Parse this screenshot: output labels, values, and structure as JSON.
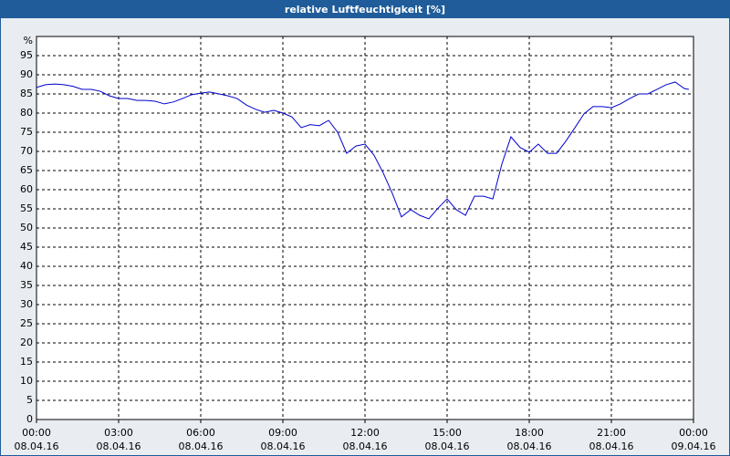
{
  "chart_data": {
    "type": "line",
    "title": "relative Luftfeuchtigkeit [%]",
    "y_label": "%",
    "x": [
      0,
      0.33,
      0.67,
      1,
      1.33,
      1.67,
      2,
      2.33,
      2.67,
      3,
      3.33,
      3.67,
      4,
      4.33,
      4.67,
      5,
      5.33,
      5.67,
      6,
      6.33,
      6.67,
      7,
      7.33,
      7.67,
      8,
      8.33,
      8.67,
      9,
      9.33,
      9.67,
      10,
      10.33,
      10.67,
      11,
      11.33,
      11.67,
      12,
      12.33,
      12.67,
      13,
      13.33,
      13.67,
      14,
      14.33,
      14.67,
      15,
      15.33,
      15.67,
      16,
      16.33,
      16.67,
      17,
      17.33,
      17.67,
      18,
      18.33,
      18.67,
      19,
      19.33,
      19.67,
      20,
      20.33,
      20.67,
      21,
      21.33,
      21.67,
      22,
      22.33,
      22.67,
      23,
      23.33,
      23.67,
      23.83
    ],
    "series": [
      {
        "name": "relative Luftfeuchtigkeit",
        "color": "#0000cc",
        "values": [
          86.7,
          87.4,
          87.6,
          87.4,
          87,
          86.2,
          86.2,
          85.7,
          84.5,
          83.8,
          83.8,
          83.3,
          83.3,
          83.1,
          82.4,
          82.9,
          83.8,
          84.8,
          85.2,
          85.5,
          85,
          84.5,
          83.8,
          82.1,
          81,
          80.2,
          80.7,
          80,
          79,
          76.2,
          77,
          76.7,
          78.1,
          75,
          69.5,
          71.4,
          71.9,
          69,
          64.3,
          59,
          52.9,
          54.8,
          53.3,
          52.4,
          55.2,
          57.6,
          54.8,
          53.3,
          58.3,
          58.3,
          57.6,
          66.7,
          73.8,
          71,
          69.8,
          71.9,
          69.5,
          69.5,
          72.6,
          76.2,
          79.8,
          81.7,
          81.7,
          81.4,
          82.4,
          83.8,
          85,
          85,
          86.2,
          87.4,
          88.1,
          86.4,
          86.2
        ]
      }
    ],
    "xlim": [
      0,
      24
    ],
    "xticks": [
      {
        "value": 0,
        "label": "00:00",
        "date": "08.04.16"
      },
      {
        "value": 3,
        "label": "03:00",
        "date": "08.04.16"
      },
      {
        "value": 6,
        "label": "06:00",
        "date": "08.04.16"
      },
      {
        "value": 9,
        "label": "09:00",
        "date": "08.04.16"
      },
      {
        "value": 12,
        "label": "12:00",
        "date": "08.04.16"
      },
      {
        "value": 15,
        "label": "15:00",
        "date": "08.04.16"
      },
      {
        "value": 18,
        "label": "18:00",
        "date": "08.04.16"
      },
      {
        "value": 21,
        "label": "21:00",
        "date": "08.04.16"
      },
      {
        "value": 24,
        "label": "00:00",
        "date": "09.04.16"
      }
    ],
    "ylim": [
      0,
      100
    ],
    "yticks": [
      0,
      5,
      10,
      15,
      20,
      25,
      30,
      35,
      40,
      45,
      50,
      55,
      60,
      65,
      70,
      75,
      80,
      85,
      90,
      95
    ],
    "grid": true
  }
}
